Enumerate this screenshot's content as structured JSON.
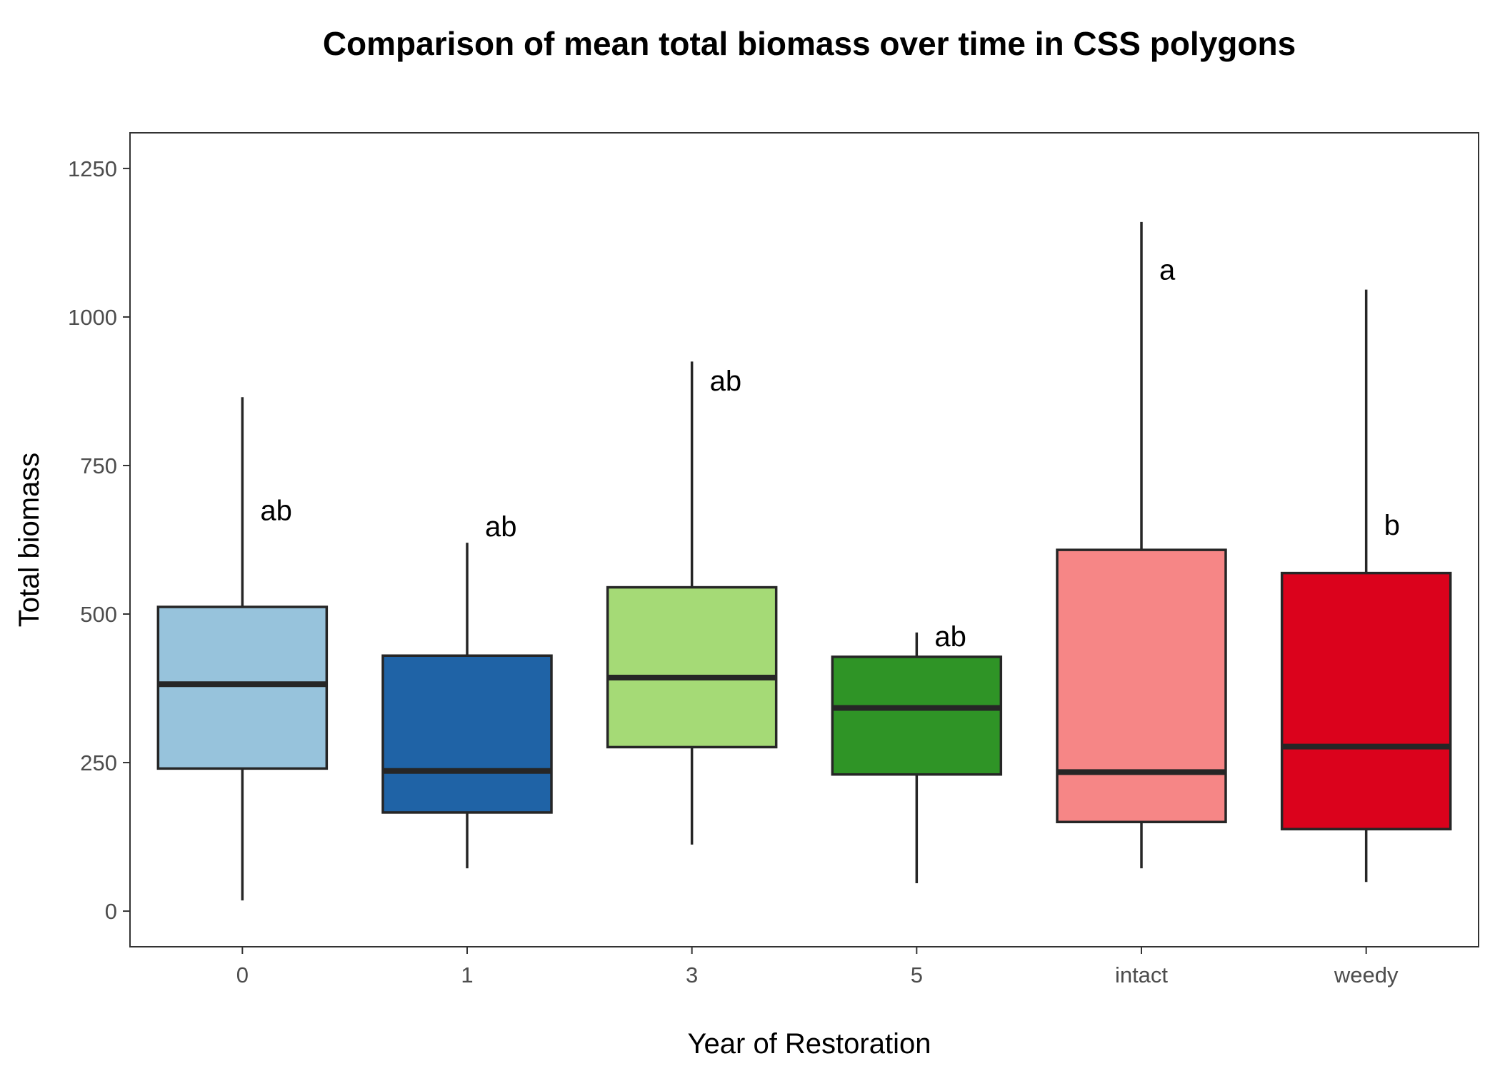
{
  "chart_data": {
    "type": "box",
    "title": "Comparison of mean total biomass over time in CSS polygons",
    "xlabel": "Year of Restoration",
    "ylabel": "Total biomass",
    "ylim": [
      -60,
      1310
    ],
    "yticks": [
      0,
      250,
      500,
      750,
      1000,
      1250
    ],
    "ytick_labels": [
      "0",
      "250",
      "500",
      "750",
      "1000",
      "1250"
    ],
    "grid": false,
    "legend": "none",
    "categories": [
      "0",
      "1",
      "3",
      "5",
      "intact",
      "weedy"
    ],
    "boxes": [
      {
        "category": "0",
        "min": 18,
        "q1": 240,
        "median": 382,
        "q3": 512,
        "max": 865,
        "letter": "ab",
        "letter_y": 675,
        "color": "#97c3dc"
      },
      {
        "category": "1",
        "min": 72,
        "q1": 166,
        "median": 236,
        "q3": 430,
        "max": 620,
        "letter": "ab",
        "letter_y": 648,
        "color": "#1f63a6"
      },
      {
        "category": "3",
        "min": 112,
        "q1": 276,
        "median": 393,
        "q3": 545,
        "max": 925,
        "letter": "ab",
        "letter_y": 893,
        "color": "#a5da76"
      },
      {
        "category": "5",
        "min": 47,
        "q1": 230,
        "median": 342,
        "q3": 428,
        "max": 469,
        "letter": "ab",
        "letter_y": 463,
        "color": "#2f9426"
      },
      {
        "category": "intact",
        "min": 72,
        "q1": 150,
        "median": 234,
        "q3": 608,
        "max": 1160,
        "letter": "a",
        "letter_y": 1080,
        "color": "#f68686"
      },
      {
        "category": "weedy",
        "min": 49,
        "q1": 138,
        "median": 277,
        "q3": 569,
        "max": 1046,
        "letter": "b",
        "letter_y": 650,
        "color": "#db021c"
      }
    ]
  }
}
